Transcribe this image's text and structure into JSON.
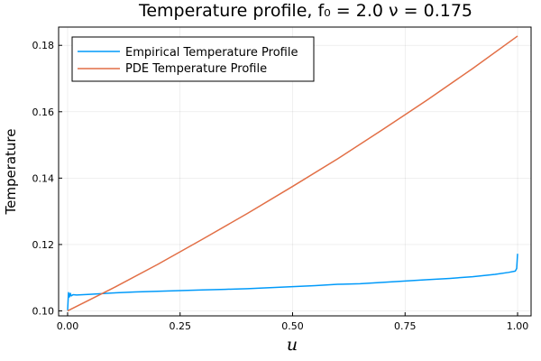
{
  "chart_data": {
    "type": "line",
    "title": "Temperature profile, f₀ = 2.0 ν = 0.175",
    "xlabel": "u",
    "ylabel": "Temperature",
    "xlim": [
      -0.02,
      1.03
    ],
    "ylim": [
      0.0985,
      0.1855
    ],
    "xticks": [
      0.0,
      0.25,
      0.5,
      0.75,
      1.0
    ],
    "xtick_labels": [
      "0.00",
      "0.25",
      "0.50",
      "0.75",
      "1.00"
    ],
    "yticks": [
      0.1,
      0.12,
      0.14,
      0.16,
      0.18
    ],
    "ytick_labels": [
      "0.10",
      "0.12",
      "0.14",
      "0.16",
      "0.18"
    ],
    "grid": true,
    "legend_position": "top-left",
    "series": [
      {
        "name": "Empirical Temperature Profile",
        "color": "#009AFA",
        "x": [
          0.0,
          0.002,
          0.004,
          0.006,
          0.008,
          0.012,
          0.02,
          0.05,
          0.1,
          0.15,
          0.2,
          0.25,
          0.3,
          0.35,
          0.4,
          0.45,
          0.5,
          0.55,
          0.6,
          0.65,
          0.7,
          0.75,
          0.8,
          0.85,
          0.9,
          0.95,
          0.98,
          0.995,
          0.998,
          1.0
        ],
        "y": [
          0.1002,
          0.1055,
          0.1042,
          0.1053,
          0.1045,
          0.1049,
          0.1048,
          0.105,
          0.1054,
          0.1057,
          0.1059,
          0.1061,
          0.1063,
          0.1065,
          0.1067,
          0.107,
          0.1073,
          0.1076,
          0.108,
          0.1082,
          0.1086,
          0.109,
          0.1094,
          0.1098,
          0.1103,
          0.111,
          0.1116,
          0.112,
          0.1128,
          0.1172
        ]
      },
      {
        "name": "PDE Temperature Profile",
        "color": "#E26F46",
        "x": [
          0.0,
          0.1,
          0.2,
          0.3,
          0.4,
          0.5,
          0.6,
          0.7,
          0.8,
          0.9,
          1.0
        ],
        "y": [
          0.1,
          0.1068,
          0.114,
          0.1216,
          0.1294,
          0.1375,
          0.1458,
          0.1546,
          0.1636,
          0.173,
          0.1828
        ]
      }
    ]
  }
}
